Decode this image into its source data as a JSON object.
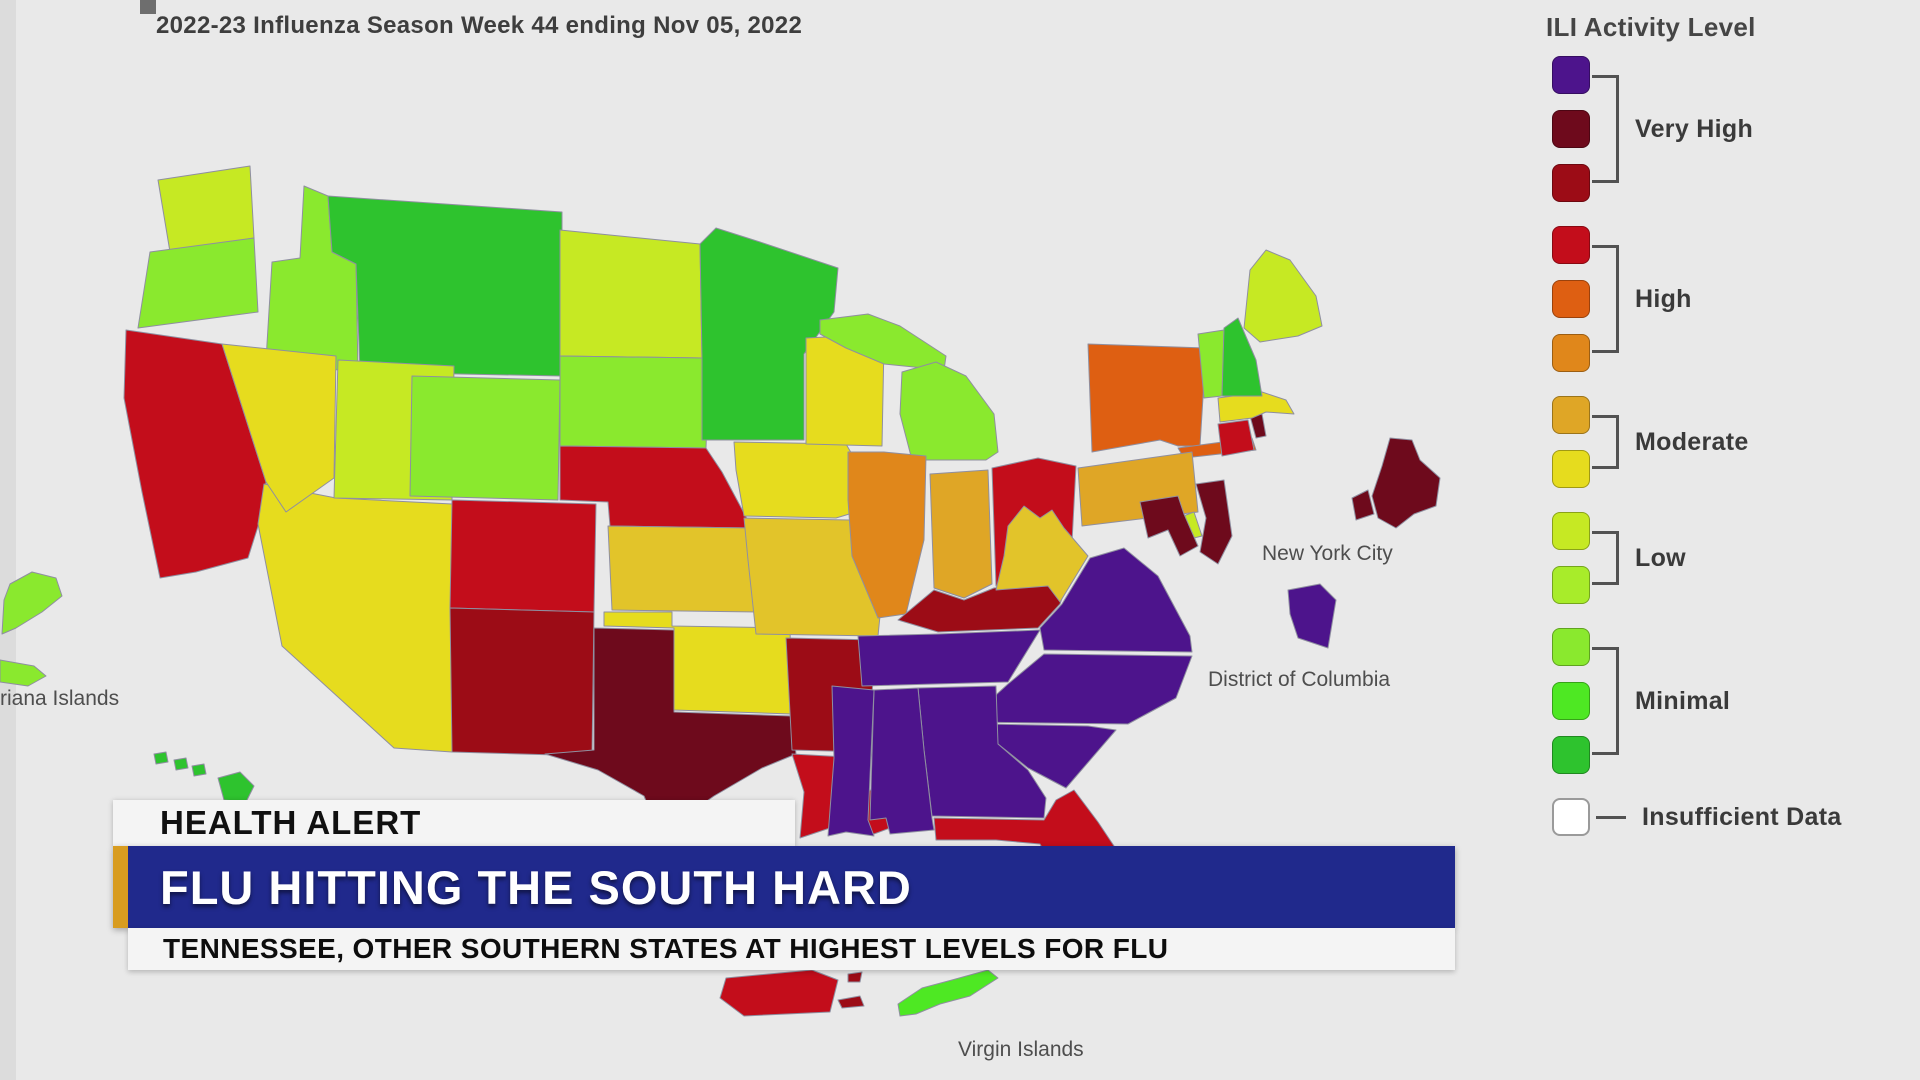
{
  "title": "2022-23 Influenza Season Week 44 ending Nov 05, 2022",
  "legend": {
    "title": "ILI Activity Level",
    "groups": [
      {
        "label": "Very High",
        "swatches": [
          "purple",
          "maroon",
          "darkred"
        ]
      },
      {
        "label": "High",
        "swatches": [
          "red",
          "orangered",
          "orange"
        ]
      },
      {
        "label": "Moderate",
        "swatches": [
          "gold",
          "yellow"
        ]
      },
      {
        "label": "Low",
        "swatches": [
          "yellowgreen",
          "lowgreen"
        ]
      },
      {
        "label": "Minimal",
        "swatches": [
          "lightgreen",
          "green2",
          "green"
        ]
      },
      {
        "label": "Insufficient Data",
        "swatches": [
          "white"
        ]
      }
    ]
  },
  "banner": {
    "kicker": "HEALTH ALERT",
    "headline": "FLU HITTING THE SOUTH HARD",
    "subheadline": "TENNESSEE, OTHER SOUTHERN STATES AT HIGHEST LEVELS FOR FLU",
    "colors": {
      "bar": "#20298C",
      "accent": "#D89C20"
    }
  },
  "map": {
    "labels": {
      "nyc": "New York City",
      "dc": "District of Columbia",
      "vi": "Virgin Islands",
      "mariana": "riana Islands"
    },
    "levels": {
      "purple": "#4D148C",
      "maroon": "#6E0A1C",
      "darkred": "#9C0C16",
      "red": "#C30D1B",
      "orangered": "#DE5F12",
      "orange": "#E0871B",
      "gold": "#DFA626",
      "darkyellow": "#E2C42A",
      "yellow": "#E6DC1E",
      "yellowgreen": "#C6E923",
      "lowgreen": "#A8EC2A",
      "lightgreen": "#8AE92E",
      "green2": "#4EE823",
      "green": "#2EC32E",
      "white": "#FFFFFF"
    },
    "states": [
      {
        "id": "WA",
        "level": "yellowgreen"
      },
      {
        "id": "OR",
        "level": "lightgreen"
      },
      {
        "id": "CA",
        "level": "red"
      },
      {
        "id": "NV",
        "level": "yellow"
      },
      {
        "id": "ID",
        "level": "lightgreen"
      },
      {
        "id": "MT",
        "level": "green"
      },
      {
        "id": "WY",
        "level": "lightgreen"
      },
      {
        "id": "UT",
        "level": "yellowgreen"
      },
      {
        "id": "AZ",
        "level": "yellow"
      },
      {
        "id": "CO",
        "level": "red"
      },
      {
        "id": "NM",
        "level": "darkred"
      },
      {
        "id": "ND",
        "level": "yellowgreen"
      },
      {
        "id": "SD",
        "level": "lightgreen"
      },
      {
        "id": "NE",
        "level": "red"
      },
      {
        "id": "KS",
        "level": "darkyellow"
      },
      {
        "id": "OK",
        "level": "yellow"
      },
      {
        "id": "TX",
        "level": "maroon"
      },
      {
        "id": "MN",
        "level": "green"
      },
      {
        "id": "IA",
        "level": "yellow"
      },
      {
        "id": "MO",
        "level": "darkyellow"
      },
      {
        "id": "AR",
        "level": "darkred"
      },
      {
        "id": "LA",
        "level": "red"
      },
      {
        "id": "WI",
        "level": "yellow"
      },
      {
        "id": "MI-UP",
        "level": "lightgreen"
      },
      {
        "id": "MI-LP",
        "level": "lightgreen"
      },
      {
        "id": "IL",
        "level": "orange"
      },
      {
        "id": "IN",
        "level": "gold"
      },
      {
        "id": "OH",
        "level": "red"
      },
      {
        "id": "KY",
        "level": "darkred"
      },
      {
        "id": "TN",
        "level": "purple"
      },
      {
        "id": "WV",
        "level": "darkyellow"
      },
      {
        "id": "VA",
        "level": "purple"
      },
      {
        "id": "NC",
        "level": "purple"
      },
      {
        "id": "SC",
        "level": "purple"
      },
      {
        "id": "GA",
        "level": "purple"
      },
      {
        "id": "AL",
        "level": "purple"
      },
      {
        "id": "MS",
        "level": "purple"
      },
      {
        "id": "FL",
        "level": "red"
      },
      {
        "id": "NY",
        "level": "orangered"
      },
      {
        "id": "NY-LI",
        "level": "orangered"
      },
      {
        "id": "PA",
        "level": "gold"
      },
      {
        "id": "NJ",
        "level": "maroon"
      },
      {
        "id": "DE",
        "level": "yellowgreen"
      },
      {
        "id": "MD",
        "level": "maroon"
      },
      {
        "id": "CT",
        "level": "red"
      },
      {
        "id": "RI",
        "level": "maroon"
      },
      {
        "id": "MA",
        "level": "yellow"
      },
      {
        "id": "VT",
        "level": "lightgreen"
      },
      {
        "id": "NH",
        "level": "green"
      },
      {
        "id": "ME",
        "level": "yellowgreen"
      },
      {
        "id": "NYC-INSET",
        "level": "maroon"
      },
      {
        "id": "NYC-INSET2",
        "level": "maroon"
      },
      {
        "id": "DC-INSET",
        "level": "purple"
      },
      {
        "id": "PR",
        "level": "red"
      },
      {
        "id": "PR-ISLET1",
        "level": "darkred"
      },
      {
        "id": "PR-ISLET2",
        "level": "darkred"
      },
      {
        "id": "VI",
        "level": "green2"
      },
      {
        "id": "GUAM",
        "level": "lightgreen"
      },
      {
        "id": "MARIANA-ISLET",
        "level": "lightgreen"
      },
      {
        "id": "HI-1",
        "level": "green"
      },
      {
        "id": "HI-2",
        "level": "green"
      },
      {
        "id": "HI-3",
        "level": "green"
      },
      {
        "id": "HI-4",
        "level": "green"
      }
    ]
  }
}
